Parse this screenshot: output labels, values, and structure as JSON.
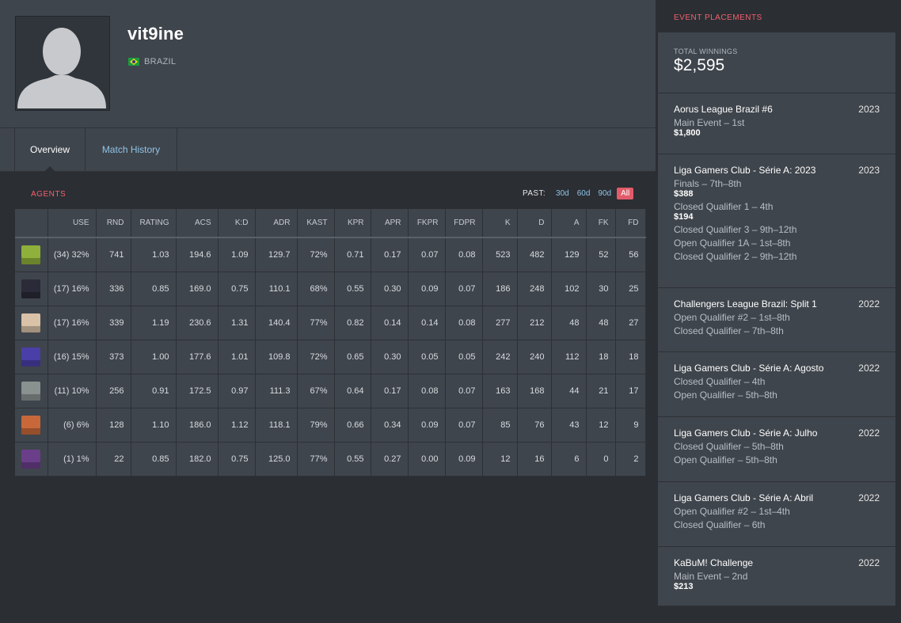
{
  "profile": {
    "username": "vit9ine",
    "country": "BRAZIL"
  },
  "tabs": [
    {
      "label": "Overview"
    },
    {
      "label": "Match History"
    }
  ],
  "agents_section": {
    "title": "AGENTS",
    "past_label": "PAST:",
    "past_options": [
      "30d",
      "60d",
      "90d",
      "All"
    ],
    "columns": [
      "USE",
      "RND",
      "RATING",
      "ACS",
      "K:D",
      "ADR",
      "KAST",
      "KPR",
      "APR",
      "FKPR",
      "FDPR",
      "K",
      "D",
      "A",
      "FK",
      "FD"
    ],
    "rows": [
      [
        "(34) 32%",
        "741",
        "1.03",
        "194.6",
        "1.09",
        "129.7",
        "72%",
        "0.71",
        "0.17",
        "0.07",
        "0.08",
        "523",
        "482",
        "129",
        "52",
        "56"
      ],
      [
        "(17) 16%",
        "336",
        "0.85",
        "169.0",
        "0.75",
        "110.1",
        "68%",
        "0.55",
        "0.30",
        "0.09",
        "0.07",
        "186",
        "248",
        "102",
        "30",
        "25"
      ],
      [
        "(17) 16%",
        "339",
        "1.19",
        "230.6",
        "1.31",
        "140.4",
        "77%",
        "0.82",
        "0.14",
        "0.14",
        "0.08",
        "277",
        "212",
        "48",
        "48",
        "27"
      ],
      [
        "(16) 15%",
        "373",
        "1.00",
        "177.6",
        "1.01",
        "109.8",
        "72%",
        "0.65",
        "0.30",
        "0.05",
        "0.05",
        "242",
        "240",
        "112",
        "18",
        "18"
      ],
      [
        "(11) 10%",
        "256",
        "0.91",
        "172.5",
        "0.97",
        "111.3",
        "67%",
        "0.64",
        "0.17",
        "0.08",
        "0.07",
        "163",
        "168",
        "44",
        "21",
        "17"
      ],
      [
        "(6) 6%",
        "128",
        "1.10",
        "186.0",
        "1.12",
        "118.1",
        "79%",
        "0.66",
        "0.34",
        "0.09",
        "0.07",
        "85",
        "76",
        "43",
        "12",
        "9"
      ],
      [
        "(1) 1%",
        "22",
        "0.85",
        "182.0",
        "0.75",
        "125.0",
        "77%",
        "0.55",
        "0.27",
        "0.00",
        "0.09",
        "12",
        "16",
        "6",
        "0",
        "2"
      ]
    ],
    "agent_icon_colors": [
      "#8fb03a",
      "#2a2a38",
      "#d9c2a8",
      "#4a3fa8",
      "#8a9290",
      "#c8683a",
      "#6b3e8a"
    ]
  },
  "placements": {
    "title": "EVENT PLACEMENTS",
    "total_label": "TOTAL WINNINGS",
    "total_value": "$2,595",
    "events": [
      {
        "name": "Aorus League Brazil #6",
        "year": "2023",
        "lines": [
          {
            "place": "Main Event – 1st",
            "prize": "$1,800"
          }
        ]
      },
      {
        "name": "Liga Gamers Club - Série A: 2023",
        "year": "2023",
        "lines": [
          {
            "place": "Finals – 7th–8th",
            "prize": "$388"
          },
          {
            "place": "Closed Qualifier 1 – 4th",
            "prize": "$194"
          },
          {
            "place": "Closed Qualifier 3 – 9th–12th",
            "prize": ""
          },
          {
            "place": "Open Qualifier 1A – 1st–8th",
            "prize": ""
          },
          {
            "place": "Closed Qualifier 2 – 9th–12th",
            "prize": ""
          }
        ]
      },
      {
        "name": "Challengers League Brazil: Split 1",
        "year": "2022",
        "lines": [
          {
            "place": "Open Qualifier #2 – 1st–8th",
            "prize": ""
          },
          {
            "place": "Closed Qualifier – 7th–8th",
            "prize": ""
          }
        ]
      },
      {
        "name": "Liga Gamers Club - Série A: Agosto",
        "year": "2022",
        "lines": [
          {
            "place": "Closed Qualifier – 4th",
            "prize": ""
          },
          {
            "place": "Open Qualifier – 5th–8th",
            "prize": ""
          }
        ]
      },
      {
        "name": "Liga Gamers Club - Série A: Julho",
        "year": "2022",
        "lines": [
          {
            "place": "Closed Qualifier – 5th–8th",
            "prize": ""
          },
          {
            "place": "Open Qualifier – 5th–8th",
            "prize": ""
          }
        ]
      },
      {
        "name": "Liga Gamers Club - Série A: Abril",
        "year": "2022",
        "lines": [
          {
            "place": "Open Qualifier #2 – 1st–4th",
            "prize": ""
          },
          {
            "place": "Closed Qualifier – 6th",
            "prize": ""
          }
        ]
      },
      {
        "name": "KaBuM! Challenge",
        "year": "2022",
        "lines": [
          {
            "place": "Main Event – 2nd",
            "prize": "$213"
          }
        ]
      }
    ]
  }
}
